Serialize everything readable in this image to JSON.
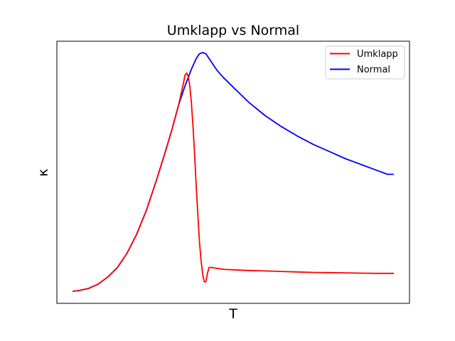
{
  "chart_data": {
    "type": "line",
    "title": "Umklapp vs Normal",
    "xlabel": "T",
    "ylabel": "κ",
    "xticks": [],
    "yticks": [],
    "xlim": [
      0,
      1
    ],
    "ylim": [
      0,
      1
    ],
    "grid": false,
    "legend_position": "top-right",
    "series": [
      {
        "name": "Umklapp",
        "color": "#ff0000",
        "x": [
          0.0,
          0.02,
          0.05,
          0.08,
          0.11,
          0.14,
          0.17,
          0.2,
          0.23,
          0.26,
          0.29,
          0.31,
          0.33,
          0.345,
          0.35,
          0.355,
          0.36,
          0.365,
          0.37,
          0.375,
          0.38,
          0.385,
          0.39,
          0.395,
          0.4,
          0.405,
          0.41,
          0.415,
          0.42,
          0.425,
          0.43,
          0.435,
          0.44,
          0.445,
          0.45,
          0.455,
          0.46,
          0.465,
          0.47,
          0.48,
          0.5,
          0.55,
          0.6,
          0.65,
          0.7,
          0.75,
          0.8,
          0.85,
          0.9,
          0.95,
          1.0
        ],
        "y": [
          0.0,
          0.003,
          0.012,
          0.03,
          0.06,
          0.1,
          0.16,
          0.24,
          0.34,
          0.46,
          0.59,
          0.68,
          0.78,
          0.87,
          0.905,
          0.915,
          0.9,
          0.86,
          0.79,
          0.69,
          0.57,
          0.44,
          0.32,
          0.21,
          0.13,
          0.07,
          0.04,
          0.04,
          0.075,
          0.1,
          0.1,
          0.099,
          0.098,
          0.097,
          0.096,
          0.095,
          0.094,
          0.093,
          0.092,
          0.091,
          0.09,
          0.087,
          0.085,
          0.083,
          0.081,
          0.079,
          0.078,
          0.077,
          0.076,
          0.075,
          0.075
        ]
      },
      {
        "name": "Normal",
        "color": "#0000ff",
        "x": [
          0.0,
          0.02,
          0.05,
          0.08,
          0.11,
          0.14,
          0.17,
          0.2,
          0.23,
          0.26,
          0.29,
          0.31,
          0.33,
          0.35,
          0.37,
          0.385,
          0.395,
          0.405,
          0.415,
          0.43,
          0.45,
          0.47,
          0.5,
          0.55,
          0.6,
          0.65,
          0.7,
          0.75,
          0.8,
          0.85,
          0.9,
          0.95,
          0.98,
          1.0
        ],
        "y": [
          0.0,
          0.003,
          0.012,
          0.03,
          0.06,
          0.1,
          0.16,
          0.24,
          0.34,
          0.46,
          0.59,
          0.68,
          0.78,
          0.86,
          0.93,
          0.975,
          0.995,
          1.0,
          0.995,
          0.965,
          0.925,
          0.895,
          0.855,
          0.79,
          0.735,
          0.69,
          0.65,
          0.615,
          0.585,
          0.555,
          0.53,
          0.505,
          0.49,
          0.49
        ]
      }
    ]
  }
}
